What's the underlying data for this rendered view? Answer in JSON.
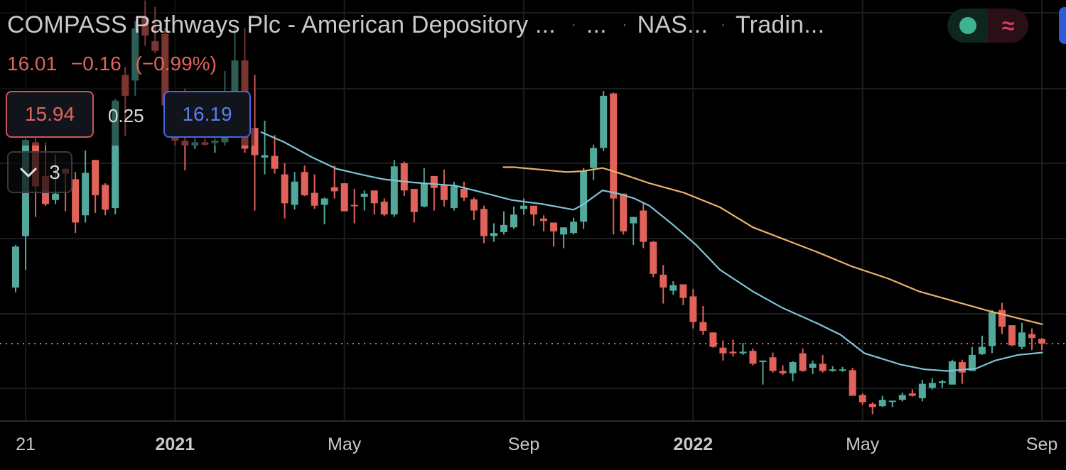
{
  "header": {
    "title": "COMPASS Pathways Plc - American Depository ...",
    "sep": "·",
    "interval": "...",
    "exchange": "NAS...",
    "source": "Tradin...",
    "last_price": "16.01",
    "change": "−0.16",
    "change_pct": "(−0.99%)",
    "sell_price": "15.94",
    "spread": "0.25",
    "buy_price": "16.19",
    "indicators_count": "3",
    "collapse_icon": "chevron-down-icon",
    "market_status_icon": "green-dot-icon",
    "indicator_icon": "approx-wave-icon",
    "approx_glyph": "≈"
  },
  "colors": {
    "up": "#52a99b",
    "down": "#e0625a",
    "ma_short": "#7fc3d6",
    "ma_long": "#e8b26a",
    "price_line": "#e0625a",
    "background": "#000000"
  },
  "chart_data": {
    "type": "candlestick",
    "interval": "weekly",
    "last_price": 16.01,
    "x_ticks": [
      {
        "label": "21",
        "bar": 1,
        "bold": false
      },
      {
        "label": "2021",
        "bar": 16,
        "bold": true
      },
      {
        "label": "May",
        "bar": 33,
        "bold": false
      },
      {
        "label": "Sep",
        "bar": 51,
        "bold": false
      },
      {
        "label": "2022",
        "bar": 68,
        "bold": true
      },
      {
        "label": "May",
        "bar": 85,
        "bold": false
      },
      {
        "label": "Sep",
        "bar": 103,
        "bold": false
      }
    ],
    "ylim": [
      1.5,
      59
    ],
    "grid": true,
    "ohlc": [
      [
        23.0,
        28.3,
        22.4,
        28.1
      ],
      [
        29.4,
        41.6,
        25.2,
        41.4
      ],
      [
        41.1,
        41.6,
        31.8,
        35.6
      ],
      [
        36.9,
        41.1,
        33.2,
        33.4
      ],
      [
        33.9,
        39.6,
        33.4,
        34.7
      ],
      [
        37.8,
        37.8,
        32.5,
        37.2
      ],
      [
        36.5,
        37.4,
        29.8,
        31.1
      ],
      [
        32.0,
        40.1,
        31.1,
        37.3
      ],
      [
        38.9,
        38.9,
        32.3,
        34.5
      ],
      [
        35.8,
        36.0,
        32.0,
        32.7
      ],
      [
        32.9,
        46.5,
        32.1,
        46.3
      ],
      [
        49.5,
        50.5,
        41.9,
        46.9
      ],
      [
        48.8,
        56.2,
        46.9,
        55.3
      ],
      [
        56.6,
        58.8,
        53.1,
        54.4
      ],
      [
        53.7,
        58.0,
        52.2,
        52.5
      ],
      [
        54.6,
        55.3,
        45.7,
        45.7
      ],
      [
        45.6,
        46.5,
        40.7,
        41.3
      ],
      [
        41.3,
        47.8,
        37.6,
        40.7
      ],
      [
        40.7,
        41.6,
        40.3,
        41.1
      ],
      [
        41.1,
        41.6,
        40.7,
        40.8
      ],
      [
        41.0,
        41.6,
        39.8,
        41.3
      ],
      [
        41.1,
        50.0,
        40.7,
        47.3
      ],
      [
        47.3,
        55.3,
        46.9,
        51.3
      ],
      [
        51.3,
        55.3,
        39.8,
        40.3
      ],
      [
        42.9,
        49.5,
        32.6,
        39.5
      ],
      [
        39.2,
        43.8,
        37.1,
        39.5
      ],
      [
        39.4,
        42.0,
        37.2,
        37.8
      ],
      [
        37.1,
        38.5,
        31.6,
        33.5
      ],
      [
        33.3,
        37.4,
        32.7,
        36.2
      ],
      [
        37.4,
        38.2,
        34.4,
        34.5
      ],
      [
        34.8,
        37.1,
        32.8,
        33.2
      ],
      [
        33.3,
        34.2,
        30.9,
        34.1
      ],
      [
        35.5,
        38.2,
        34.1,
        35.0
      ],
      [
        36.0,
        36.0,
        32.5,
        32.5
      ],
      [
        33.3,
        35.3,
        31.0,
        33.2
      ],
      [
        34.3,
        35.1,
        32.6,
        34.7
      ],
      [
        35.1,
        35.1,
        32.1,
        33.5
      ],
      [
        33.7,
        34.1,
        31.9,
        32.1
      ],
      [
        32.1,
        38.9,
        31.8,
        38.1
      ],
      [
        38.5,
        38.7,
        34.4,
        35.1
      ],
      [
        35.3,
        35.3,
        31.1,
        32.4
      ],
      [
        33.1,
        37.9,
        33.0,
        36.0
      ],
      [
        36.9,
        36.9,
        32.6,
        35.4
      ],
      [
        35.8,
        37.7,
        33.1,
        33.9
      ],
      [
        32.9,
        36.2,
        32.6,
        35.6
      ],
      [
        35.3,
        36.2,
        33.8,
        34.2
      ],
      [
        34.0,
        34.2,
        31.4,
        32.6
      ],
      [
        32.8,
        33.2,
        28.5,
        29.4
      ],
      [
        29.4,
        31.0,
        28.7,
        29.8
      ],
      [
        29.9,
        32.5,
        29.6,
        30.8
      ],
      [
        30.5,
        33.1,
        30.3,
        32.1
      ],
      [
        32.8,
        34.1,
        32.1,
        33.2
      ],
      [
        33.2,
        33.2,
        30.7,
        32.1
      ],
      [
        31.6,
        32.0,
        30.0,
        31.3
      ],
      [
        31.1,
        31.1,
        28.1,
        30.0
      ],
      [
        29.6,
        30.5,
        27.9,
        30.5
      ],
      [
        29.8,
        31.7,
        29.6,
        31.2
      ],
      [
        31.2,
        37.9,
        30.3,
        37.5
      ],
      [
        37.9,
        40.8,
        36.4,
        40.4
      ],
      [
        40.4,
        47.5,
        40.0,
        46.9
      ],
      [
        47.2,
        47.3,
        29.6,
        34.1
      ],
      [
        34.7,
        34.7,
        29.6,
        30.0
      ],
      [
        31.0,
        31.8,
        28.3,
        31.8
      ],
      [
        32.6,
        33.5,
        27.9,
        28.7
      ],
      [
        28.7,
        28.8,
        24.3,
        24.7
      ],
      [
        24.6,
        25.8,
        21.0,
        23.0
      ],
      [
        22.6,
        23.8,
        22.1,
        23.3
      ],
      [
        23.4,
        23.4,
        20.8,
        21.7
      ],
      [
        21.9,
        22.8,
        17.9,
        18.7
      ],
      [
        18.7,
        20.7,
        17.1,
        17.6
      ],
      [
        17.4,
        17.4,
        15.5,
        15.6
      ],
      [
        15.5,
        16.4,
        13.9,
        14.8
      ],
      [
        15.0,
        16.5,
        14.4,
        14.8
      ],
      [
        14.8,
        16.1,
        14.6,
        15.0
      ],
      [
        15.1,
        15.4,
        13.3,
        13.5
      ],
      [
        13.7,
        13.9,
        10.9,
        13.9
      ],
      [
        14.3,
        14.9,
        12.4,
        12.6
      ],
      [
        12.6,
        13.3,
        12.1,
        12.3
      ],
      [
        12.3,
        13.8,
        11.3,
        13.7
      ],
      [
        14.8,
        15.4,
        12.5,
        12.6
      ],
      [
        13.0,
        13.9,
        12.2,
        13.5
      ],
      [
        13.5,
        14.6,
        12.4,
        12.6
      ],
      [
        12.6,
        13.2,
        12.5,
        12.8
      ],
      [
        12.7,
        13.1,
        12.5,
        12.8
      ],
      [
        12.7,
        13.0,
        9.5,
        9.5
      ],
      [
        9.6,
        9.8,
        8.4,
        8.7
      ],
      [
        8.5,
        8.7,
        7.2,
        8.1
      ],
      [
        8.2,
        9.5,
        8.1,
        9.0
      ],
      [
        8.8,
        8.9,
        8.1,
        8.9
      ],
      [
        9.0,
        9.9,
        8.8,
        9.6
      ],
      [
        9.8,
        10.3,
        9.4,
        9.5
      ],
      [
        9.2,
        11.5,
        8.8,
        11.0
      ],
      [
        10.5,
        11.7,
        10.3,
        11.1
      ],
      [
        11.1,
        11.5,
        10.5,
        11.3
      ],
      [
        10.9,
        14.0,
        10.9,
        13.8
      ],
      [
        13.7,
        14.0,
        11.0,
        12.4
      ],
      [
        12.6,
        15.6,
        12.6,
        14.6
      ],
      [
        14.7,
        17.0,
        14.6,
        15.6
      ],
      [
        15.7,
        20.2,
        14.8,
        19.9
      ],
      [
        20.2,
        21.1,
        17.2,
        18.1
      ],
      [
        18.3,
        18.3,
        15.7,
        15.8
      ],
      [
        15.6,
        18.6,
        15.3,
        17.4
      ],
      [
        17.2,
        17.9,
        15.2,
        16.7
      ],
      [
        16.6,
        16.7,
        15.2,
        16.01
      ]
    ],
    "moving_averages": [
      {
        "color": "#7fc3d6",
        "points": [
          [
            24.6,
            42.4
          ],
          [
            27.0,
            41.1
          ],
          [
            29.8,
            39.2
          ],
          [
            32.2,
            37.8
          ],
          [
            35.0,
            37.0
          ],
          [
            36.9,
            36.5
          ],
          [
            39.8,
            36.1
          ],
          [
            44.1,
            35.7
          ],
          [
            46.4,
            35.0
          ],
          [
            49.8,
            33.9
          ],
          [
            52.9,
            33.4
          ],
          [
            56.0,
            32.7
          ],
          [
            56.9,
            33.3
          ],
          [
            58.9,
            35.1
          ],
          [
            60.5,
            34.7
          ],
          [
            62.1,
            34.1
          ],
          [
            63.6,
            33.2
          ],
          [
            66.0,
            30.8
          ],
          [
            68.3,
            28.3
          ],
          [
            70.7,
            25.2
          ],
          [
            74.0,
            22.5
          ],
          [
            76.9,
            20.5
          ],
          [
            80.5,
            18.5
          ],
          [
            82.8,
            17.1
          ],
          [
            85.2,
            14.8
          ],
          [
            88.8,
            13.4
          ],
          [
            91.2,
            12.8
          ],
          [
            93.5,
            12.6
          ],
          [
            96.4,
            12.9
          ],
          [
            98.3,
            13.9
          ],
          [
            100.6,
            14.6
          ],
          [
            103.1,
            14.9
          ]
        ]
      },
      {
        "color": "#e8b26a",
        "points": [
          [
            48.9,
            38.0
          ],
          [
            50.0,
            38.0
          ],
          [
            55.3,
            37.4
          ],
          [
            56.9,
            37.5
          ],
          [
            58.9,
            37.9
          ],
          [
            60.5,
            37.3
          ],
          [
            63.6,
            36.0
          ],
          [
            67.1,
            34.8
          ],
          [
            70.7,
            33.0
          ],
          [
            74.0,
            30.5
          ],
          [
            80.5,
            27.4
          ],
          [
            84.0,
            25.6
          ],
          [
            87.6,
            24.1
          ],
          [
            90.7,
            22.5
          ],
          [
            97.6,
            20.1
          ],
          [
            103.1,
            18.4
          ]
        ]
      }
    ]
  }
}
